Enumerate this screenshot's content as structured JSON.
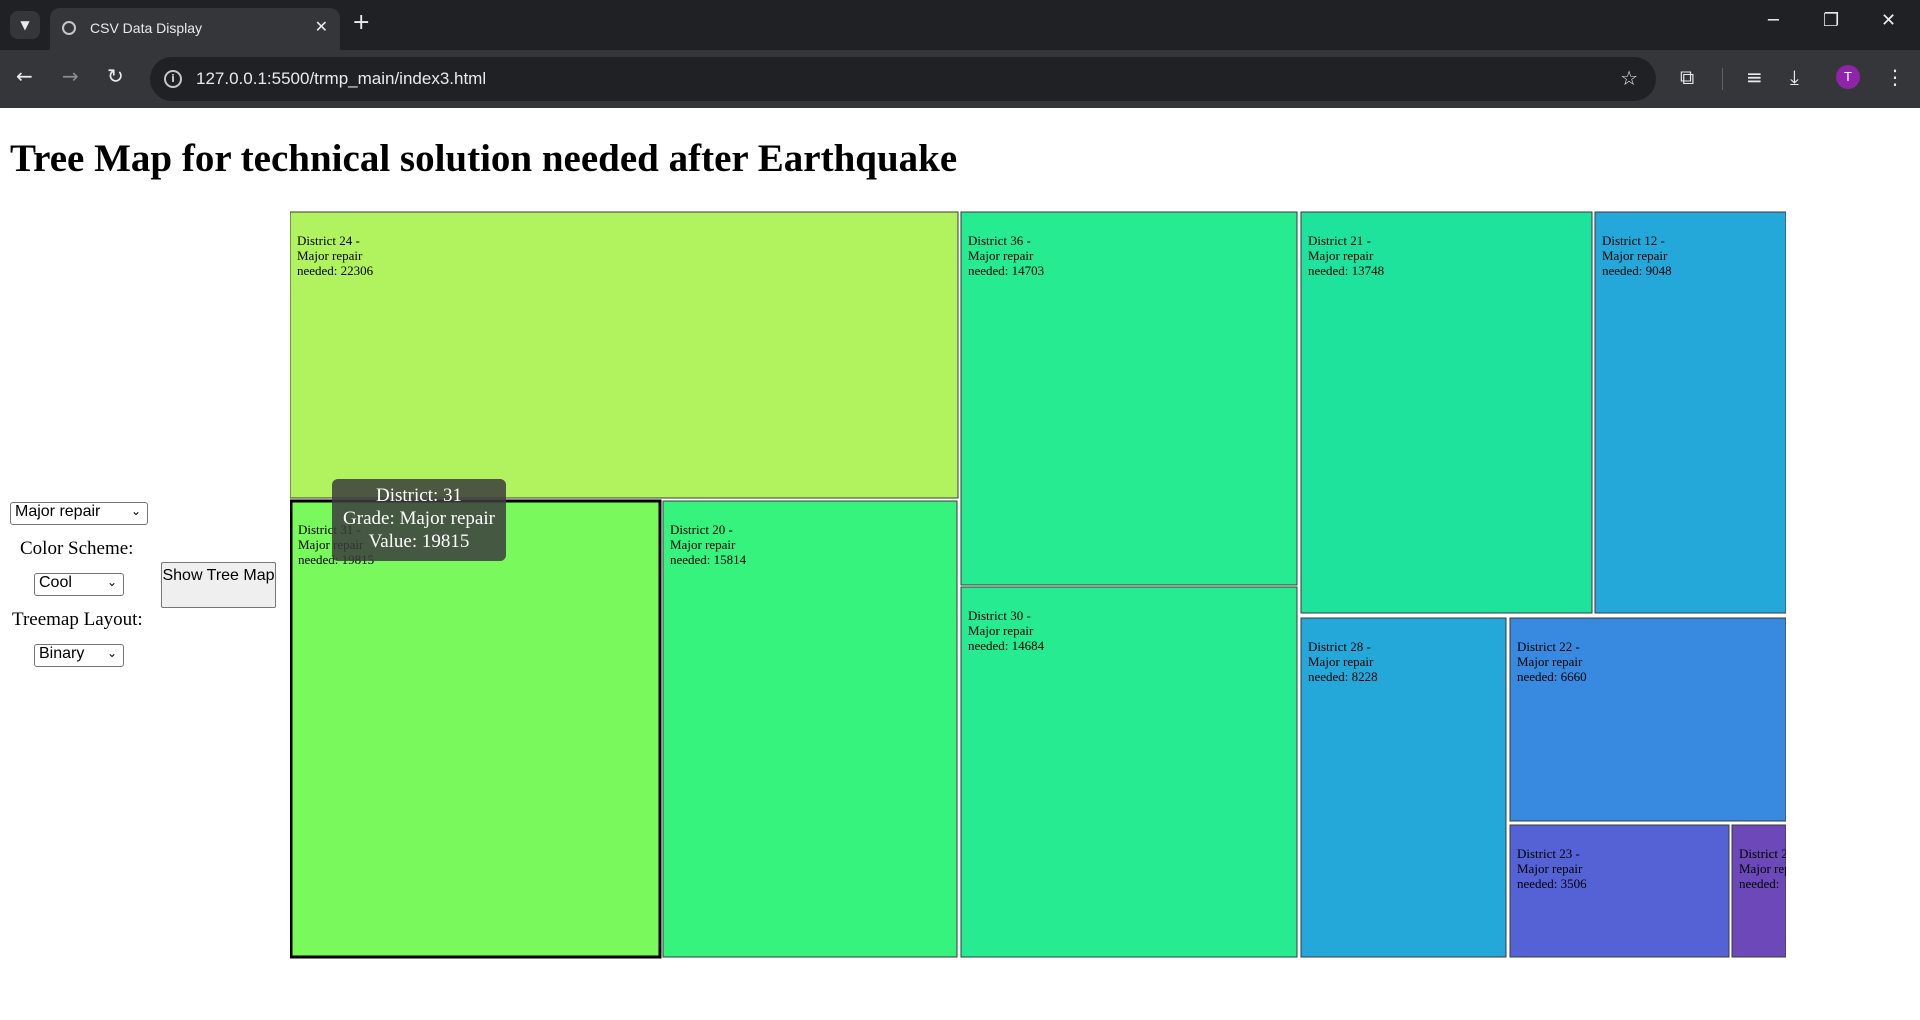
{
  "browser": {
    "tab_title": "CSV Data Display",
    "url": "127.0.0.1:5500/trmp_main/index3.html",
    "profile_initial": "T"
  },
  "page": {
    "title": "Tree Map for technical solution needed after Earthquake"
  },
  "controls": {
    "grade_select": "Major repair",
    "color_scheme_label": "Color Scheme:",
    "color_scheme_select": "Cool",
    "layout_label": "Treemap Layout:",
    "layout_select": "Binary",
    "show_button": "Show Tree Map"
  },
  "tooltip": {
    "line1": "District: 31",
    "line2": "Grade: Major repair",
    "line3": "Value: 19815"
  },
  "chart_data": {
    "type": "treemap",
    "title": "Tree Map for technical solution needed after Earthquake",
    "grade": "Major repair",
    "nodes": [
      {
        "district": "District 24",
        "value": 22306,
        "color": "#b1f25f"
      },
      {
        "district": "District 31",
        "value": 19815,
        "color": "#7af95d"
      },
      {
        "district": "District 20",
        "value": 15814,
        "color": "#36f37e"
      },
      {
        "district": "District 36",
        "value": 14703,
        "color": "#27eb90"
      },
      {
        "district": "District 30",
        "value": 14684,
        "color": "#27eb90"
      },
      {
        "district": "District 21",
        "value": 13748,
        "color": "#1ee39d"
      },
      {
        "district": "District 12",
        "value": 9048,
        "color": "#24a8d9"
      },
      {
        "district": "District 28",
        "value": 8228,
        "color": "#24a8d9"
      },
      {
        "district": "District 22",
        "value": 6660,
        "color": "#378ae0"
      },
      {
        "district": "District 23",
        "value": 3506,
        "color": "#5562d6"
      },
      {
        "district": "District 2",
        "value": null,
        "color": "#6c48b8"
      }
    ],
    "label_line2": "Major repair",
    "label_prefix": "needed: "
  }
}
